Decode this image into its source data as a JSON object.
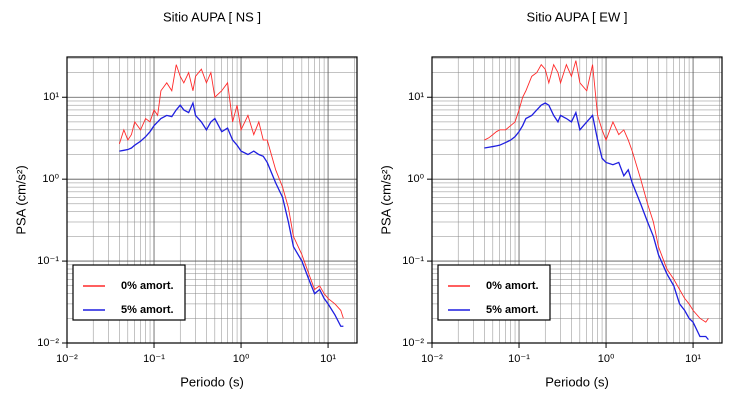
{
  "chart_data": [
    {
      "type": "line",
      "title": "Sitio AUPA [ NS ]",
      "x_label": "Periodo (s)",
      "y_label": "PSA (cm/s²)",
      "log_x": true,
      "log_y": true,
      "grid": true,
      "legend": "lower left",
      "xlim": [
        0.01,
        21.5
      ],
      "ylim": [
        0.01,
        31
      ],
      "xticks": [
        {
          "value": 0.01,
          "label": "10⁻²"
        },
        {
          "value": 0.1,
          "label": "10⁻¹"
        },
        {
          "value": 1,
          "label": "10⁰"
        },
        {
          "value": 10,
          "label": "10¹"
        }
      ],
      "yticks": [
        {
          "value": 0.01,
          "label": "10⁻²"
        },
        {
          "value": 0.1,
          "label": "10⁻¹"
        },
        {
          "value": 1,
          "label": "10⁰"
        },
        {
          "value": 10,
          "label": "10¹"
        }
      ],
      "xminorticks": [
        0.02,
        0.03,
        0.04,
        0.05,
        0.06,
        0.07,
        0.08,
        0.09,
        0.2,
        0.3,
        0.4,
        0.5,
        0.6,
        0.7,
        0.8,
        0.9,
        2,
        3,
        4,
        5,
        6,
        7,
        8,
        9,
        20
      ],
      "yminorticks": [
        0.02,
        0.03,
        0.04,
        0.05,
        0.06,
        0.07,
        0.08,
        0.09,
        0.2,
        0.3,
        0.4,
        0.5,
        0.6,
        0.7,
        0.8,
        0.9,
        2,
        3,
        4,
        5,
        6,
        7,
        8,
        9,
        20,
        30
      ],
      "x": [
        0.04,
        0.045,
        0.05,
        0.055,
        0.06,
        0.07,
        0.08,
        0.09,
        0.1,
        0.11,
        0.12,
        0.14,
        0.16,
        0.18,
        0.2,
        0.22,
        0.25,
        0.28,
        0.3,
        0.35,
        0.4,
        0.45,
        0.5,
        0.6,
        0.7,
        0.8,
        0.9,
        1.0,
        1.2,
        1.4,
        1.6,
        1.8,
        2.0,
        2.5,
        3.0,
        3.5,
        4.0,
        5.0,
        6.0,
        7.0,
        8.0,
        9.0,
        10,
        12,
        14,
        15
      ],
      "series": [
        {
          "name": "0% amort.",
          "color": "#ff2a2a",
          "values": [
            2.7,
            4,
            3,
            3.5,
            5,
            4,
            5.5,
            5,
            7,
            6,
            12,
            15,
            12,
            25,
            18,
            15,
            20,
            12,
            18,
            22,
            15,
            20,
            10,
            12,
            15,
            5,
            8,
            4,
            6,
            3.5,
            5,
            3,
            3,
            1.3,
            0.8,
            0.45,
            0.2,
            0.12,
            0.07,
            0.045,
            0.05,
            0.04,
            0.035,
            0.03,
            0.025,
            0.02
          ]
        },
        {
          "name": "5% amort.",
          "color": "#1f1fe0",
          "values": [
            2.2,
            2.25,
            2.3,
            2.4,
            2.6,
            2.9,
            3.3,
            3.8,
            4.5,
            5,
            5.5,
            6,
            5.8,
            7,
            8,
            7,
            6.5,
            8.5,
            6,
            5,
            4,
            5,
            5.5,
            3.8,
            4.2,
            3,
            2.6,
            2.2,
            2.0,
            2.2,
            2.0,
            1.9,
            1.6,
            0.9,
            0.6,
            0.3,
            0.15,
            0.1,
            0.06,
            0.04,
            0.045,
            0.035,
            0.03,
            0.022,
            0.016,
            0.016
          ]
        }
      ]
    },
    {
      "type": "line",
      "title": "Sitio AUPA [ EW ]",
      "x_label": "Periodo (s)",
      "y_label": "PSA (cm/s²)",
      "log_x": true,
      "log_y": true,
      "grid": true,
      "legend": "lower left",
      "xlim": [
        0.01,
        21.5
      ],
      "ylim": [
        0.01,
        31
      ],
      "xticks": [
        {
          "value": 0.01,
          "label": "10⁻²"
        },
        {
          "value": 0.1,
          "label": "10⁻¹"
        },
        {
          "value": 1,
          "label": "10⁰"
        },
        {
          "value": 10,
          "label": "10¹"
        }
      ],
      "yticks": [
        {
          "value": 0.01,
          "label": "10⁻²"
        },
        {
          "value": 0.1,
          "label": "10⁻¹"
        },
        {
          "value": 1,
          "label": "10⁰"
        },
        {
          "value": 10,
          "label": "10¹"
        }
      ],
      "xminorticks": [
        0.02,
        0.03,
        0.04,
        0.05,
        0.06,
        0.07,
        0.08,
        0.09,
        0.2,
        0.3,
        0.4,
        0.5,
        0.6,
        0.7,
        0.8,
        0.9,
        2,
        3,
        4,
        5,
        6,
        7,
        8,
        9,
        20
      ],
      "yminorticks": [
        0.02,
        0.03,
        0.04,
        0.05,
        0.06,
        0.07,
        0.08,
        0.09,
        0.2,
        0.3,
        0.4,
        0.5,
        0.6,
        0.7,
        0.8,
        0.9,
        2,
        3,
        4,
        5,
        6,
        7,
        8,
        9,
        20,
        30
      ],
      "x": [
        0.04,
        0.045,
        0.05,
        0.055,
        0.06,
        0.07,
        0.08,
        0.09,
        0.1,
        0.11,
        0.12,
        0.14,
        0.16,
        0.18,
        0.2,
        0.22,
        0.25,
        0.28,
        0.3,
        0.35,
        0.4,
        0.45,
        0.5,
        0.6,
        0.7,
        0.8,
        0.9,
        1.0,
        1.2,
        1.4,
        1.6,
        1.8,
        2.0,
        2.5,
        3.0,
        3.5,
        4.0,
        5.0,
        6.0,
        7.0,
        8.0,
        9.0,
        10,
        12,
        14,
        15
      ],
      "series": [
        {
          "name": "0% amort.",
          "color": "#ff2a2a",
          "values": [
            3,
            3.2,
            3.5,
            3.8,
            4,
            4,
            4.5,
            5,
            7,
            10,
            12,
            18,
            20,
            25,
            22,
            15,
            25,
            20,
            15,
            25,
            18,
            28,
            15,
            12,
            25,
            6,
            4,
            3,
            5,
            3.5,
            4,
            3,
            2.2,
            1,
            0.5,
            0.3,
            0.15,
            0.08,
            0.06,
            0.045,
            0.035,
            0.03,
            0.025,
            0.02,
            0.018,
            0.02
          ]
        },
        {
          "name": "5% amort.",
          "color": "#1f1fe0",
          "values": [
            2.4,
            2.45,
            2.5,
            2.55,
            2.6,
            2.8,
            3.0,
            3.3,
            3.8,
            4.5,
            5.5,
            6,
            7,
            8,
            8.5,
            8,
            6,
            5,
            6,
            5.5,
            5,
            6.5,
            4,
            5,
            6,
            3,
            1.8,
            1.6,
            1.5,
            1.6,
            1.1,
            1.3,
            0.9,
            0.5,
            0.3,
            0.2,
            0.12,
            0.07,
            0.05,
            0.03,
            0.025,
            0.02,
            0.018,
            0.012,
            0.012,
            0.011
          ]
        }
      ]
    }
  ]
}
